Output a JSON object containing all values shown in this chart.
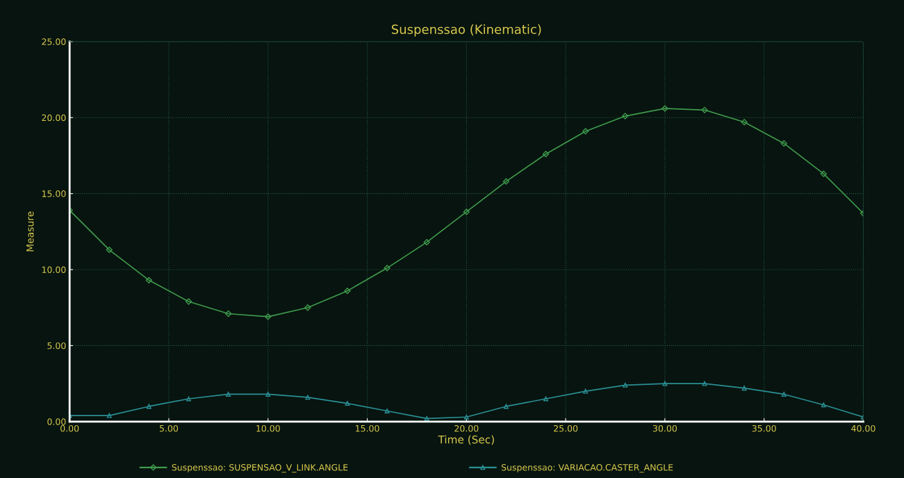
{
  "chart_data": {
    "type": "line",
    "title": "Suspenssao (Kinematic)",
    "xlabel": "Time (Sec)",
    "ylabel": "Measure",
    "x": [
      0,
      2,
      4,
      6,
      8,
      10,
      12,
      14,
      16,
      18,
      20,
      22,
      24,
      26,
      28,
      30,
      32,
      34,
      36,
      38,
      40
    ],
    "series": [
      {
        "name": "Suspenssao: SUSPENSAO_V_LINK.ANGLE",
        "color": "#3f9a4c",
        "marker": "diamond",
        "values": [
          13.9,
          11.3,
          9.3,
          7.9,
          7.1,
          6.9,
          7.5,
          8.6,
          10.1,
          11.8,
          13.8,
          15.8,
          17.6,
          19.1,
          20.1,
          20.6,
          20.5,
          19.7,
          18.3,
          16.3,
          13.7
        ]
      },
      {
        "name": "Suspenssao: VARIACAO.CASTER_ANGLE",
        "color": "#2a8f95",
        "marker": "triangle",
        "values": [
          0.4,
          0.4,
          1.0,
          1.5,
          1.8,
          1.8,
          1.6,
          1.2,
          0.7,
          0.2,
          0.3,
          1.0,
          1.5,
          2.0,
          2.4,
          2.5,
          2.5,
          2.2,
          1.8,
          1.1,
          0.3
        ]
      }
    ],
    "xlim": [
      0,
      40
    ],
    "ylim": [
      0,
      25
    ],
    "xticks": [
      {
        "value": 0,
        "label": "0.00"
      },
      {
        "value": 5,
        "label": "5.00"
      },
      {
        "value": 10,
        "label": "10.00"
      },
      {
        "value": 15,
        "label": "15.00"
      },
      {
        "value": 20,
        "label": "20.00"
      },
      {
        "value": 25,
        "label": "25.00"
      },
      {
        "value": 30,
        "label": "30.00"
      },
      {
        "value": 35,
        "label": "35.00"
      },
      {
        "value": 40,
        "label": "40.00"
      }
    ],
    "yticks": [
      {
        "value": 0,
        "label": "0.00"
      },
      {
        "value": 5,
        "label": "5.00"
      },
      {
        "value": 10,
        "label": "10.00"
      },
      {
        "value": 15,
        "label": "15.00"
      },
      {
        "value": 20,
        "label": "20.00"
      },
      {
        "value": 25,
        "label": "25.00"
      }
    ],
    "grid": true,
    "legend": "bottom",
    "line_style": "solid"
  }
}
